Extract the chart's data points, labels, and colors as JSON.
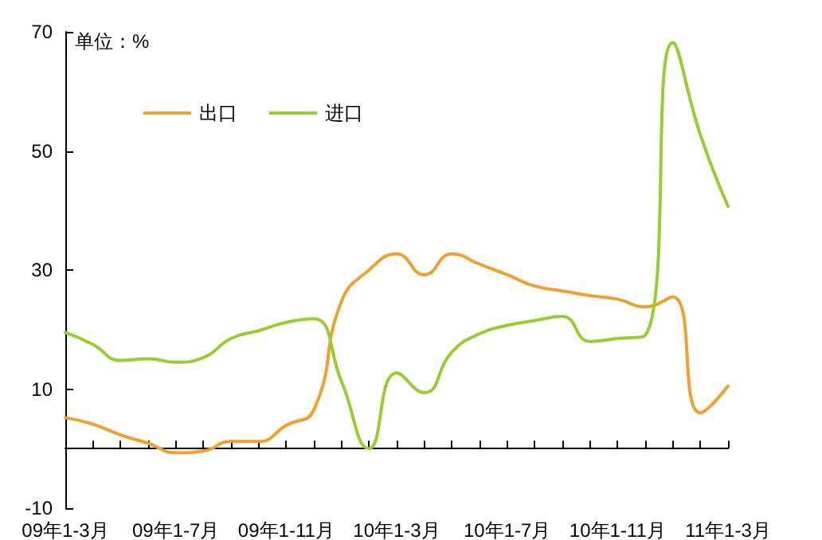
{
  "chart_data": {
    "type": "line",
    "annotations": [
      "单位：%"
    ],
    "categories": [
      "09年1-3月",
      null,
      null,
      null,
      "09年1-7月",
      null,
      null,
      null,
      "09年1-11月",
      null,
      null,
      null,
      "10年1-3月",
      null,
      null,
      null,
      "10年1-7月",
      null,
      null,
      null,
      "10年1-11月",
      null,
      null,
      null,
      "11年1-3月"
    ],
    "series": [
      {
        "name": "出口",
        "color": "#f0a030",
        "values": [
          5.2,
          4.1,
          2.3,
          0.9,
          -0.7,
          -0.4,
          1.2,
          1.2,
          3.9,
          6.5,
          24.7,
          30,
          32.7,
          29.2,
          32.7,
          31,
          29.2,
          27.3,
          26.5,
          25.7,
          25.1,
          23.8,
          25.5,
          6,
          10.5
        ]
      },
      {
        "name": "进口",
        "color": "#99cc33",
        "values": [
          19.5,
          17.5,
          14.8,
          15.1,
          14.5,
          15.3,
          18.5,
          19.8,
          21.2,
          21.8,
          11.3,
          0,
          12.7,
          9.4,
          16.2,
          19.3,
          20.7,
          21.5,
          22.2,
          18,
          18.5,
          19,
          68.2,
          52.7,
          40.7
        ]
      }
    ],
    "ylim": [
      -10,
      70
    ],
    "yticks": [
      -10,
      10,
      30,
      50,
      70
    ],
    "grid": false,
    "legend": "top left",
    "marker": "none",
    "line_style": "solid"
  }
}
